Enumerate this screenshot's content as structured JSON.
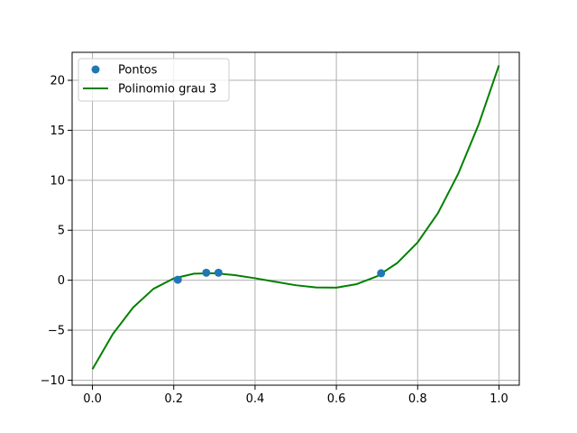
{
  "chart_data": {
    "type": "line",
    "title": "",
    "xlabel": "",
    "ylabel": "",
    "xlim": [
      -0.05,
      1.05
    ],
    "ylim": [
      -10.5,
      22.8
    ],
    "xticks": [
      0.0,
      0.2,
      0.4,
      0.6,
      0.8,
      1.0
    ],
    "xtick_labels": [
      "0.0",
      "0.2",
      "0.4",
      "0.6",
      "0.8",
      "1.0"
    ],
    "yticks": [
      -10,
      -5,
      0,
      5,
      10,
      15,
      20
    ],
    "ytick_labels": [
      "−10",
      "−5",
      "0",
      "5",
      "10",
      "15",
      "20"
    ],
    "grid": true,
    "legend_position": "top-left",
    "legend": [
      "Pontos",
      "Polinomio grau 3"
    ],
    "series": [
      {
        "name": "Pontos",
        "kind": "scatter",
        "color": "#1f77b4",
        "points": [
          {
            "x": 0.21,
            "y": 0.05
          },
          {
            "x": 0.28,
            "y": 0.75
          },
          {
            "x": 0.31,
            "y": 0.75
          },
          {
            "x": 0.71,
            "y": 0.7
          }
        ]
      },
      {
        "name": "Polinomio grau 3",
        "kind": "line",
        "color": "#008000",
        "points": [
          {
            "x": 0.0,
            "y": -8.9
          },
          {
            "x": 0.05,
            "y": -5.39
          },
          {
            "x": 0.1,
            "y": -2.73
          },
          {
            "x": 0.15,
            "y": -0.86
          },
          {
            "x": 0.2,
            "y": 0.18
          },
          {
            "x": 0.25,
            "y": 0.66
          },
          {
            "x": 0.3,
            "y": 0.7
          },
          {
            "x": 0.35,
            "y": 0.51
          },
          {
            "x": 0.4,
            "y": 0.2
          },
          {
            "x": 0.45,
            "y": -0.16
          },
          {
            "x": 0.5,
            "y": -0.5
          },
          {
            "x": 0.55,
            "y": -0.72
          },
          {
            "x": 0.6,
            "y": -0.74
          },
          {
            "x": 0.65,
            "y": -0.39
          },
          {
            "x": 0.7,
            "y": 0.39
          },
          {
            "x": 0.75,
            "y": 1.73
          },
          {
            "x": 0.8,
            "y": 3.79
          },
          {
            "x": 0.85,
            "y": 6.72
          },
          {
            "x": 0.9,
            "y": 10.67
          },
          {
            "x": 0.95,
            "y": 15.58
          },
          {
            "x": 1.0,
            "y": 21.5
          }
        ]
      }
    ]
  }
}
